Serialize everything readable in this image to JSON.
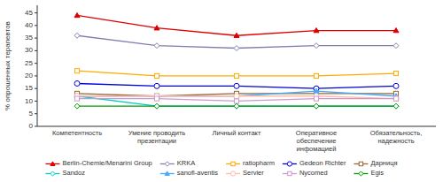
{
  "chart_data": {
    "type": "line",
    "categories": [
      "Компетентность",
      "Умение проводить\nпрезентации",
      "Личный контакт",
      "Оперативное\nобеспечение\nинфомацией",
      "Обязательность,\nнадежность"
    ],
    "series": [
      {
        "name": "Berlin-Chemie/Menarini Group",
        "color": "#dd0000",
        "marker": "triangle",
        "values": [
          44,
          39,
          36,
          38,
          38
        ]
      },
      {
        "name": "KRKA",
        "color": "#8080b0",
        "marker": "open-diamond",
        "values": [
          36,
          32,
          31,
          32,
          32
        ]
      },
      {
        "name": "ratiopharm",
        "color": "#ffaa00",
        "marker": "open-square",
        "values": [
          22,
          20,
          20,
          20,
          21
        ]
      },
      {
        "name": "Gedeon Richter",
        "color": "#0000dd",
        "marker": "open-circle",
        "values": [
          17,
          16,
          16,
          15,
          16
        ]
      },
      {
        "name": "Дарниця",
        "color": "#996633",
        "marker": "open-square",
        "values": [
          13,
          12,
          13,
          13,
          13
        ]
      },
      {
        "name": "Sandoz",
        "color": "#00cccc",
        "marker": "open-diamond",
        "values": [
          12,
          8,
          8,
          8,
          8
        ]
      },
      {
        "name": "sanofi-aventis",
        "color": "#44aaff",
        "marker": "triangle",
        "values": [
          12,
          12,
          12,
          14,
          12
        ]
      },
      {
        "name": "Servier",
        "color": "#ffbbaa",
        "marker": "open-circle",
        "values": [
          12,
          12,
          12,
          12,
          11
        ]
      },
      {
        "name": "Nycomed",
        "color": "#cc99cc",
        "marker": "open-square",
        "values": [
          11,
          11,
          10,
          11,
          11
        ]
      },
      {
        "name": "Egis",
        "color": "#009900",
        "marker": "open-diamond",
        "values": [
          8,
          8,
          8,
          8,
          8
        ]
      }
    ],
    "ylabel": "% опрошенных терапевтов",
    "ylim": [
      0,
      48
    ],
    "yticks": [
      0,
      5,
      10,
      15,
      20,
      25,
      30,
      35,
      40,
      45
    ],
    "grid": false,
    "legend": "bottom"
  }
}
